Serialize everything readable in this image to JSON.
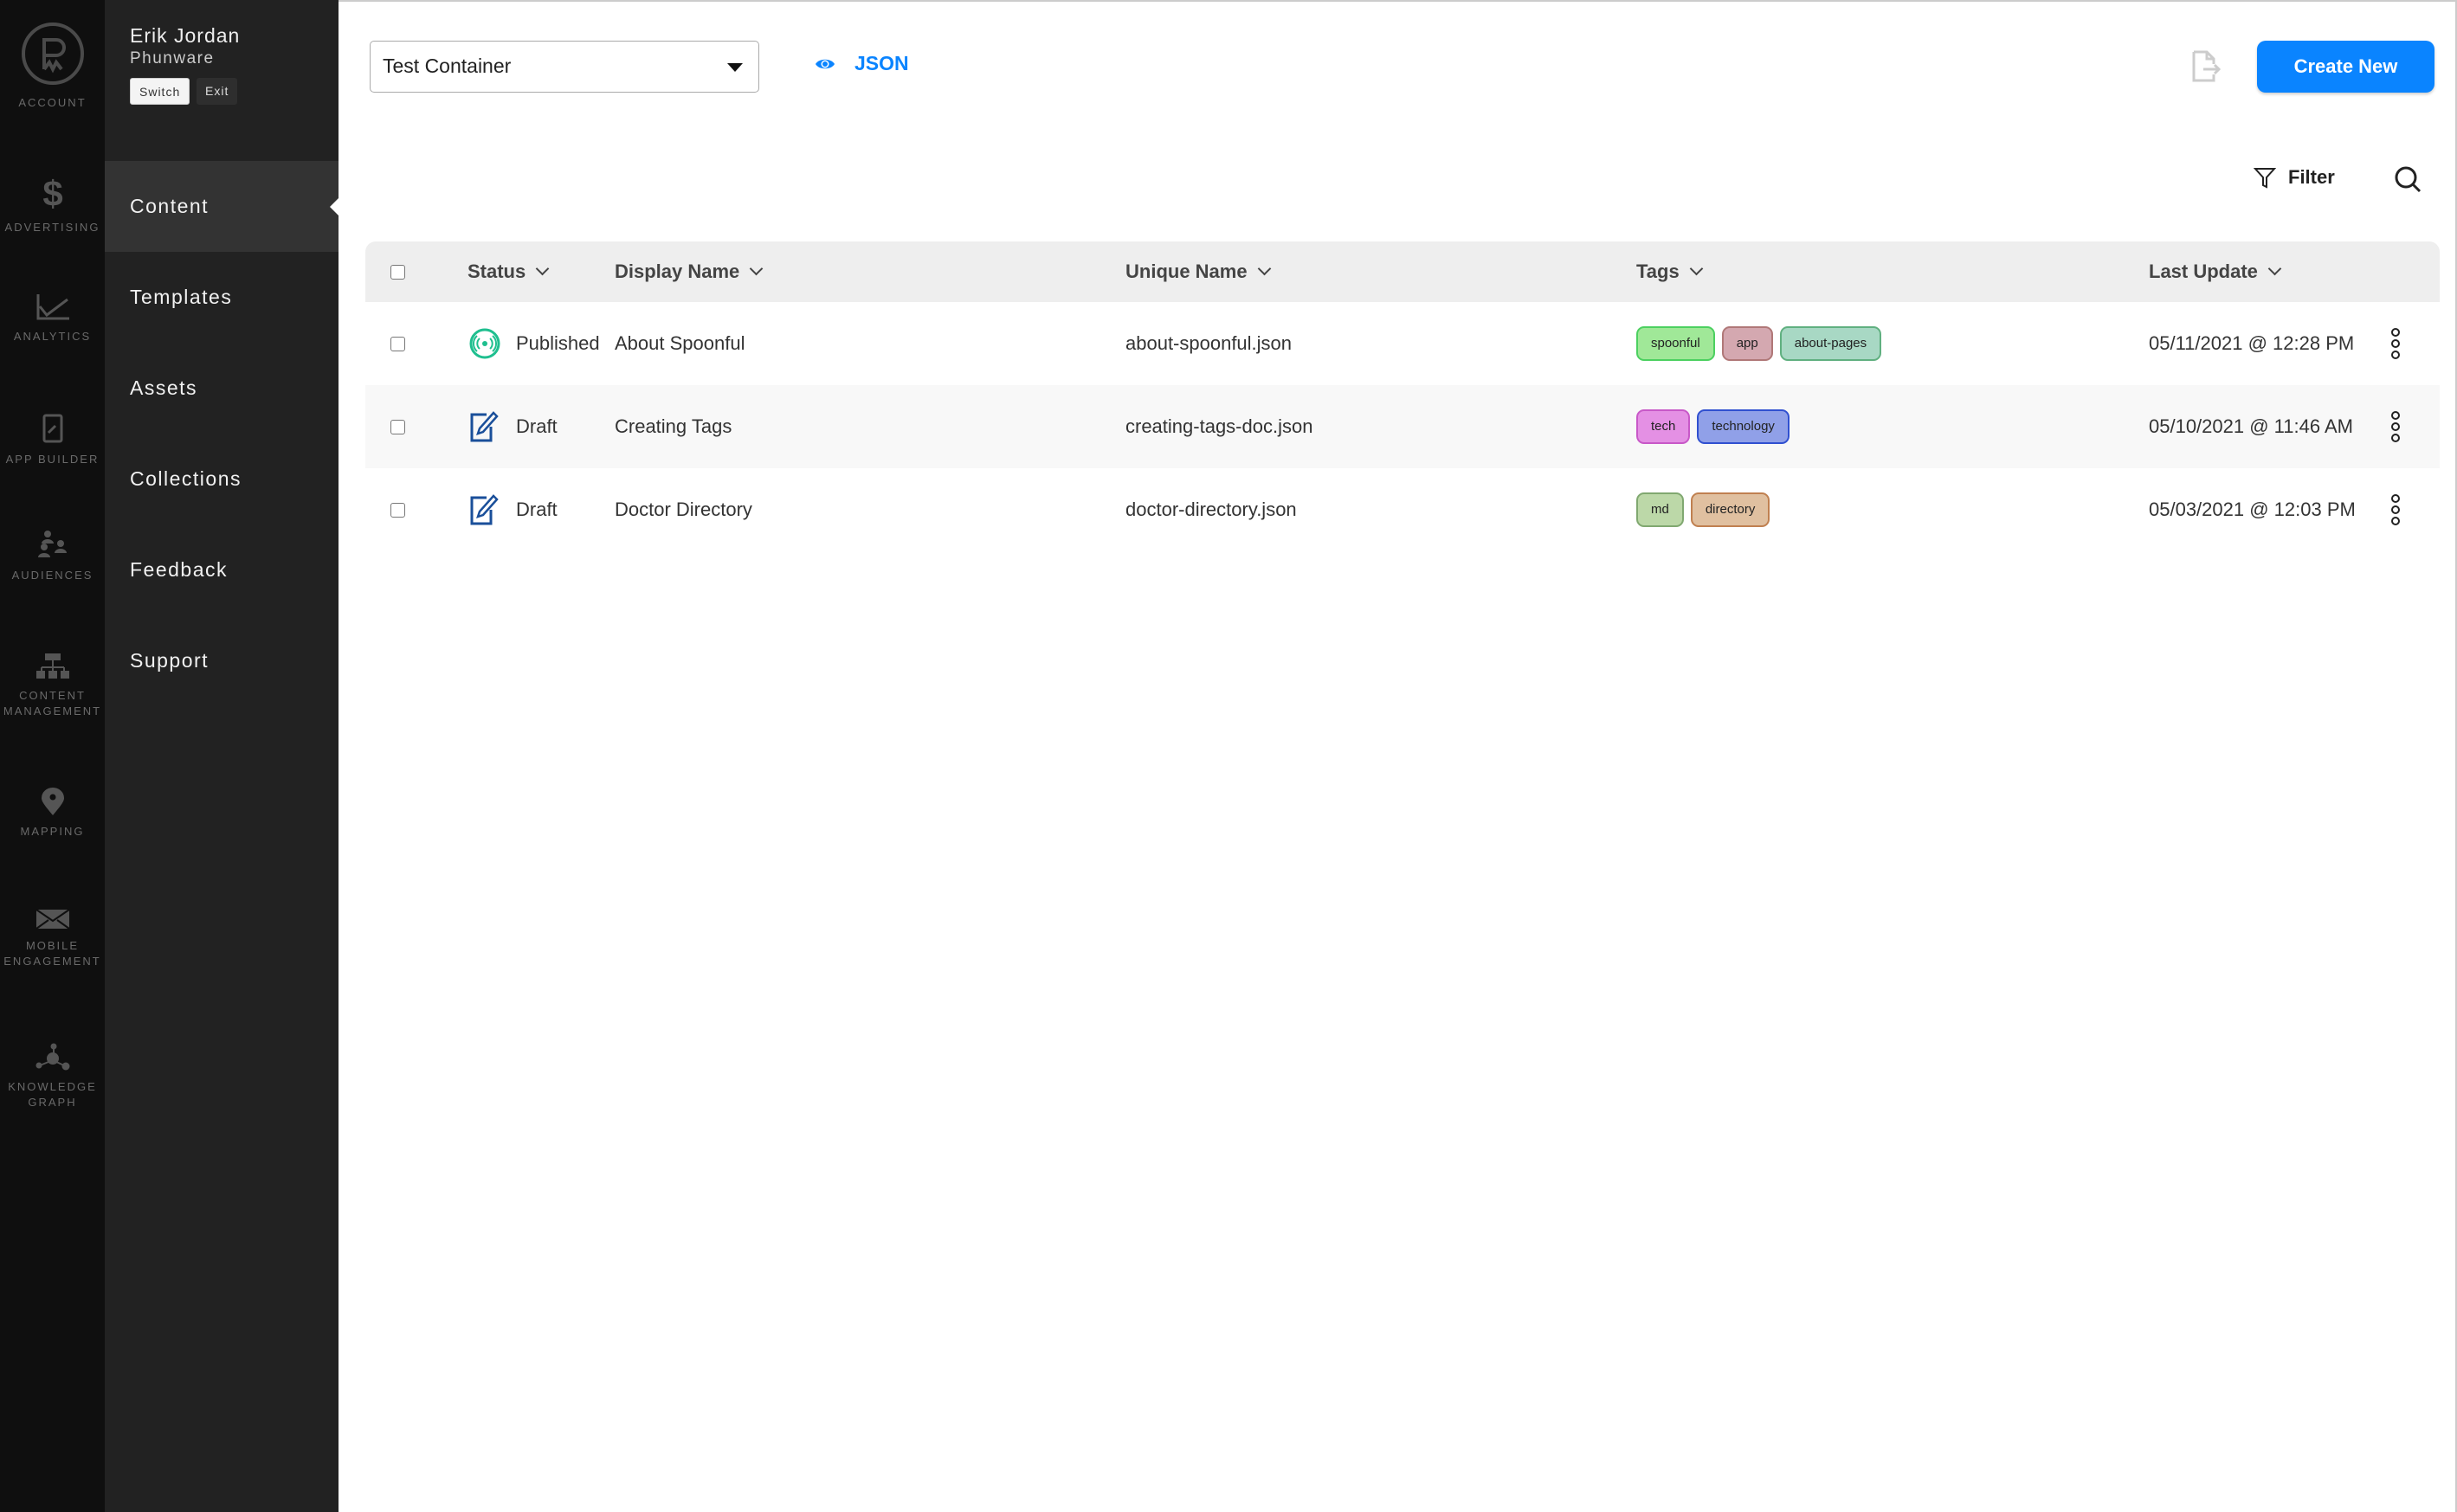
{
  "rail": [
    {
      "label1": "ACCOUNT",
      "label2": "",
      "icon": "phunware-logo-icon"
    },
    {
      "label1": "ADVERTISING",
      "label2": "",
      "icon": "dollar-icon"
    },
    {
      "label1": "ANALYTICS",
      "label2": "",
      "icon": "line-chart-icon"
    },
    {
      "label1": "APP BUILDER",
      "label2": "",
      "icon": "phone-wrench-icon"
    },
    {
      "label1": "AUDIENCES",
      "label2": "",
      "icon": "people-icon"
    },
    {
      "label1": "CONTENT",
      "label2": "MANAGEMENT",
      "icon": "sitemap-icon"
    },
    {
      "label1": "MAPPING",
      "label2": "",
      "icon": "map-pin-icon"
    },
    {
      "label1": "MOBILE",
      "label2": "ENGAGEMENT",
      "icon": "envelope-icon"
    },
    {
      "label1": "KNOWLEDGE",
      "label2": "GRAPH",
      "icon": "graph-nodes-icon"
    }
  ],
  "user": {
    "name": "Erik Jordan",
    "org": "Phunware",
    "switch": "Switch",
    "exit": "Exit"
  },
  "nav": [
    {
      "label": "Content",
      "active": true
    },
    {
      "label": "Templates"
    },
    {
      "label": "Assets"
    },
    {
      "label": "Collections"
    },
    {
      "label": "Feedback"
    },
    {
      "label": "Support"
    }
  ],
  "toolbar": {
    "container": "Test Container",
    "json": "JSON",
    "create": "Create New",
    "filter": "Filter",
    "accent": "#0a84ff"
  },
  "table": {
    "headers": {
      "status": "Status",
      "display": "Display Name",
      "unique": "Unique Name",
      "tags": "Tags",
      "updated": "Last Update"
    },
    "rows": [
      {
        "status": "Published",
        "display": "About Spoonful",
        "unique": "about-spoonful.json",
        "updated": "05/11/2021 @ 12:28 PM",
        "tags": [
          {
            "t": "spoonful",
            "bg": "#a0e898",
            "bd": "#4cd060"
          },
          {
            "t": "app",
            "bg": "#d4a8b0",
            "bd": "#b07878"
          },
          {
            "t": "about-pages",
            "bg": "#a8d8c4",
            "bd": "#60b080"
          }
        ]
      },
      {
        "status": "Draft",
        "display": "Creating Tags",
        "unique": "creating-tags-doc.json",
        "updated": "05/10/2021 @ 11:46 AM",
        "tags": [
          {
            "t": "tech",
            "bg": "#e490e4",
            "bd": "#c858c8"
          },
          {
            "t": "technology",
            "bg": "#90a0e8",
            "bd": "#3050d0"
          }
        ]
      },
      {
        "status": "Draft",
        "display": "Doctor Directory",
        "unique": "doctor-directory.json",
        "updated": "05/03/2021 @ 12:03 PM",
        "tags": [
          {
            "t": "md",
            "bg": "#bcd8a8",
            "bd": "#80a870"
          },
          {
            "t": "directory",
            "bg": "#e0c0a0",
            "bd": "#c08050"
          }
        ]
      }
    ]
  }
}
